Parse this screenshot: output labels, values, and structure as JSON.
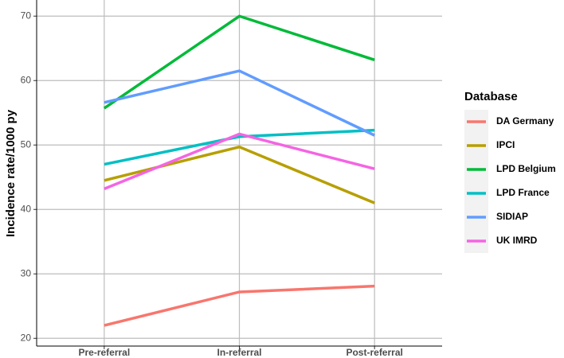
{
  "chart_data": {
    "type": "line",
    "y_label": "Incidence rate/1000 py",
    "categories": [
      "Pre-referral",
      "In-referral",
      "Post-referral"
    ],
    "legend_title": "Database",
    "series": [
      {
        "name": "DA Germany",
        "color": "#F8766D",
        "values": [
          22.0,
          27.2,
          28.1
        ]
      },
      {
        "name": "IPCI",
        "color": "#B79F00",
        "values": [
          44.5,
          49.7,
          41.0
        ]
      },
      {
        "name": "LPD Belgium",
        "color": "#00BA38",
        "values": [
          55.7,
          70.0,
          63.2
        ]
      },
      {
        "name": "LPD France",
        "color": "#00BFC4",
        "values": [
          47.0,
          51.3,
          52.3
        ]
      },
      {
        "name": "SIDIAP",
        "color": "#619CFF",
        "values": [
          56.6,
          61.5,
          51.5
        ]
      },
      {
        "name": "UK IMRD",
        "color": "#F564E3",
        "values": [
          43.2,
          51.7,
          46.3
        ]
      }
    ],
    "ylim": [
      18.8,
      72.5
    ],
    "yticks": [
      20,
      30,
      40,
      50,
      60,
      70
    ],
    "grid": true
  }
}
